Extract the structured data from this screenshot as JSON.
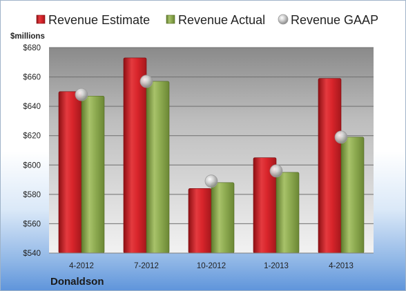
{
  "chart_data": {
    "type": "bar",
    "ylabel": "$millions",
    "ylim": [
      540,
      680
    ],
    "ytick_step": 20,
    "ytick_prefix": "$",
    "categories": [
      "4-2012",
      "7-2012",
      "10-2012",
      "1-2013",
      "4-2013"
    ],
    "series": [
      {
        "name": "Revenue Estimate",
        "kind": "bar",
        "color": "#d9252b",
        "values": [
          650,
          673,
          584,
          605,
          659
        ]
      },
      {
        "name": "Revenue Actual",
        "kind": "bar",
        "color": "#8fac52",
        "values": [
          647,
          657,
          588,
          595,
          619
        ]
      },
      {
        "name": "Revenue GAAP",
        "kind": "marker",
        "color": "#b8b8b8",
        "values": [
          648,
          657,
          589,
          596,
          619
        ]
      }
    ],
    "legend_position": "top",
    "grid": true
  },
  "footer": {
    "company": "Donaldson"
  }
}
